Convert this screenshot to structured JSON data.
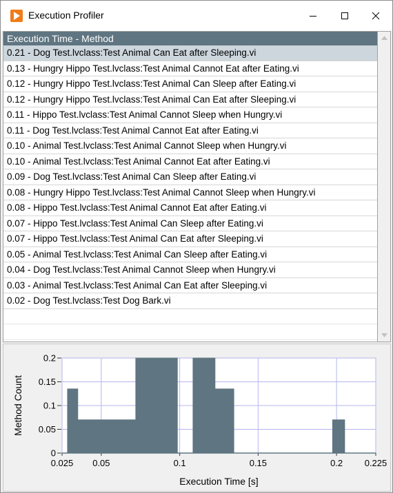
{
  "window": {
    "title": "Execution Profiler",
    "app_icon": "play-icon",
    "controls": {
      "minimize": "minimize-icon",
      "maximize": "maximize-icon",
      "close": "close-icon"
    }
  },
  "list": {
    "header": "Execution Time - Method",
    "selected_index": 0,
    "rows": [
      "0.21 - Dog Test.lvclass:Test Animal Can Eat after Sleeping.vi",
      "0.13 - Hungry Hippo Test.lvclass:Test Animal Cannot Eat after Eating.vi",
      "0.12 - Hungry Hippo Test.lvclass:Test Animal Can Sleep after Eating.vi",
      "0.12 - Hungry Hippo Test.lvclass:Test Animal Can Eat after Sleeping.vi",
      "0.11 - Hippo Test.lvclass:Test Animal Cannot Sleep when Hungry.vi",
      "0.11 - Dog Test.lvclass:Test Animal Cannot Eat after Eating.vi",
      "0.10 - Animal Test.lvclass:Test Animal Cannot Sleep when Hungry.vi",
      "0.10 - Animal Test.lvclass:Test Animal Cannot Eat after Eating.vi",
      "0.09 - Dog Test.lvclass:Test Animal Can Sleep after Eating.vi",
      "0.08 - Hungry Hippo Test.lvclass:Test Animal Cannot Sleep when Hungry.vi",
      "0.08 - Hippo Test.lvclass:Test Animal Cannot Eat after Eating.vi",
      "0.07 - Hippo Test.lvclass:Test Animal Can Sleep after Eating.vi",
      "0.07 - Hippo Test.lvclass:Test Animal Can Eat after Sleeping.vi",
      "0.05 - Animal Test.lvclass:Test Animal Can Sleep after Eating.vi",
      "0.04 - Dog Test.lvclass:Test Animal Cannot Sleep when Hungry.vi",
      "0.03 - Animal Test.lvclass:Test Animal Can Eat after Sleeping.vi",
      "0.02 - Dog Test.lvclass:Test Dog Bark.vi"
    ],
    "empty_rows": 2
  },
  "colors": {
    "accent": "#5f7581",
    "selected_row": "#cdd6dd",
    "plot_fill": "#5f7581",
    "grid": "#b4b4ef",
    "app_icon": "#f07c1a"
  },
  "chart_data": {
    "type": "area",
    "xlabel": "Execution Time [s]",
    "ylabel": "Method Count",
    "xlim": [
      0.025,
      0.225
    ],
    "ylim": [
      0,
      0.2
    ],
    "x_ticks": [
      "0.025",
      "0.05",
      "0.1",
      "0.15",
      "0.2",
      "0.225"
    ],
    "x_tick_values": [
      0.025,
      0.05,
      0.1,
      0.15,
      0.2,
      0.225
    ],
    "y_ticks": [
      "0",
      "0.05",
      "0.1",
      "0.15",
      "0.2"
    ],
    "y_tick_values": [
      0,
      0.05,
      0.1,
      0.15,
      0.2
    ],
    "grid": true,
    "x": [
      0.0285,
      0.035,
      0.072,
      0.0985,
      0.1085,
      0.1225,
      0.1345,
      0.1975,
      0.2045
    ],
    "y": [
      0.135,
      0.07,
      0.2,
      0.0,
      0.2,
      0.135,
      0.0,
      0.07,
      0.07
    ]
  }
}
